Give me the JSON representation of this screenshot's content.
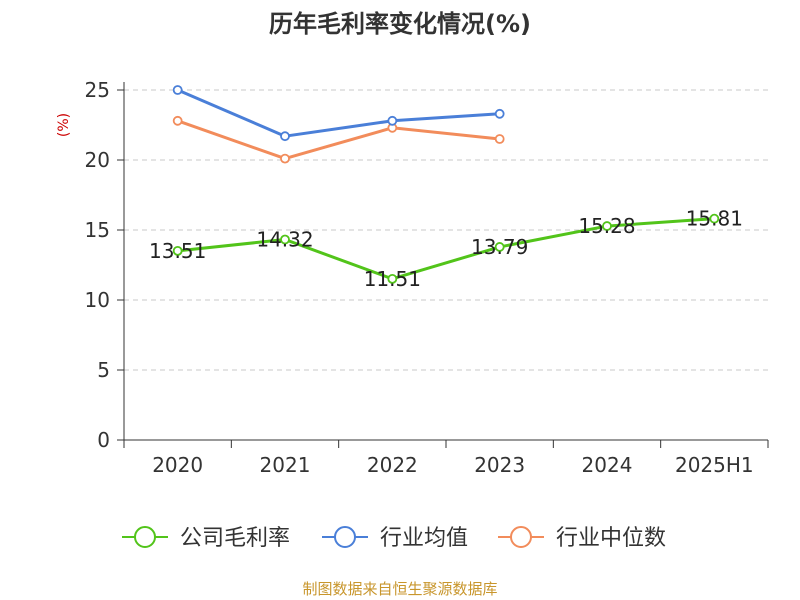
{
  "chart_data": {
    "type": "line",
    "title": "历年毛利率变化情况(%)",
    "ylabel": "(%)",
    "categories": [
      "2020",
      "2021",
      "2022",
      "2023",
      "2024",
      "2025H1"
    ],
    "ylim": [
      0,
      25
    ],
    "yticks": [
      0,
      5,
      10,
      15,
      20,
      25
    ],
    "grid": "horizontal-dashed",
    "legend_position": "bottom",
    "series": [
      {
        "name": "公司毛利率",
        "color": "#52c41a",
        "values": [
          13.51,
          14.32,
          11.51,
          13.79,
          15.28,
          15.81
        ],
        "data_labels": [
          "13.51",
          "14.32",
          "11.51",
          "13.79",
          "15.28",
          "15.81"
        ]
      },
      {
        "name": "行业均值",
        "color": "#4a7fd8",
        "values": [
          25.0,
          21.7,
          22.8,
          23.3,
          null,
          null
        ]
      },
      {
        "name": "行业中位数",
        "color": "#f28c5b",
        "values": [
          22.8,
          20.1,
          22.3,
          21.5,
          null,
          null
        ]
      }
    ]
  },
  "source": {
    "text": "制图数据来自恒生聚源数据库",
    "color": "#c8962c"
  }
}
